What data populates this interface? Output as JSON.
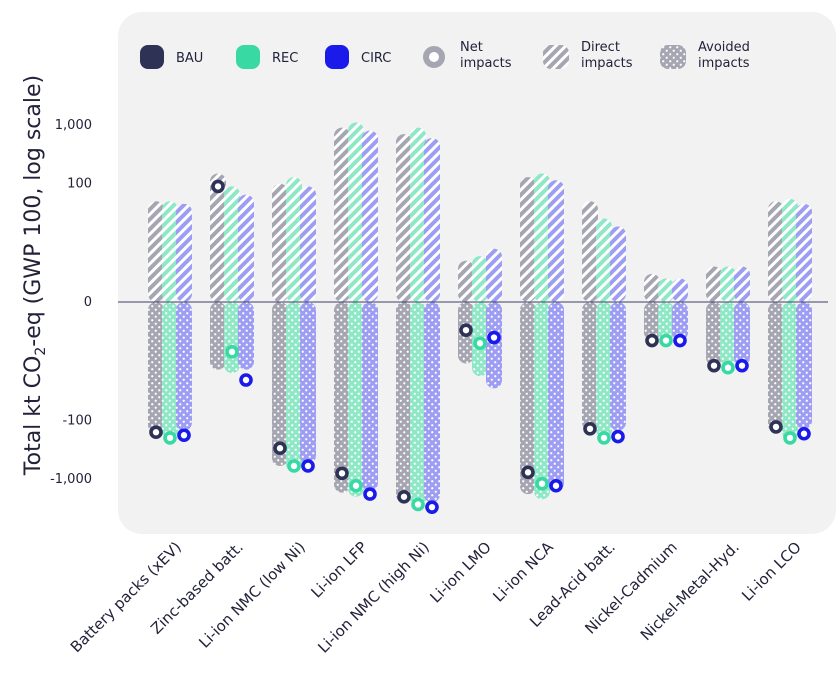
{
  "chart_data": {
    "type": "bar",
    "scale": "symlog",
    "ylabel": "Total kt CO₂-eq (GWP 100, log scale)",
    "ylabel_parts": {
      "pre": "Total kt CO",
      "sub": "2",
      "post": "-eq (GWP 100, log scale)"
    },
    "y_ticks": [
      1000,
      100,
      0,
      -100,
      -1000
    ],
    "y_tick_labels": [
      "1,000",
      "100",
      "0",
      "-100",
      "-1,000"
    ],
    "categories": [
      "Battery packs (xEV)",
      "Zinc-based batt.",
      "Li-ion NMC (low Ni)",
      "Li-ion LFP",
      "Li-ion NMC (high Ni)",
      "Li-ion LMO",
      "Li-ion NCA",
      "Lead-Acid batt.",
      "Nickel-Cadmium",
      "Nickel-Metal-Hyd.",
      "Li-ion LCO"
    ],
    "series": [
      {
        "name": "BAU",
        "color": "#2e3356",
        "direct": [
          50,
          150,
          100,
          900,
          700,
          4,
          130,
          50,
          2,
          3,
          50
        ],
        "avoided": [
          -170,
          -13,
          -600,
          -1700,
          -2500,
          -10,
          -1800,
          -150,
          -3.5,
          -11,
          -160
        ],
        "net": [
          -160,
          90,
          -300,
          -800,
          -2000,
          -2,
          -770,
          -140,
          -3.5,
          -11,
          -130
        ]
      },
      {
        "name": "REC",
        "color": "#38d9a2",
        "direct": [
          50,
          90,
          130,
          1100,
          900,
          5,
          150,
          25,
          1.5,
          3,
          55
        ],
        "avoided": [
          -220,
          -15,
          -750,
          -2000,
          -3000,
          -17,
          -2200,
          -200,
          -3.5,
          -11,
          -220
        ],
        "net": [
          -200,
          -6,
          -600,
          -1300,
          -2700,
          -4,
          -1200,
          -200,
          -3.5,
          -12,
          -200
        ]
      },
      {
        "name": "CIRC",
        "color": "#1a1aeb",
        "direct": [
          45,
          65,
          90,
          800,
          600,
          7,
          115,
          18,
          1.5,
          3,
          45
        ],
        "avoided": [
          -150,
          -13,
          -550,
          -1600,
          -2500,
          -28,
          -1600,
          -150,
          -3.5,
          -11,
          -140
        ],
        "net": [
          -180,
          -20,
          -600,
          -1800,
          -3000,
          -3,
          -1300,
          -190,
          -3.5,
          -11,
          -170
        ]
      }
    ],
    "legend": {
      "position": "top",
      "items": [
        {
          "key": "BAU",
          "label": [
            "BAU"
          ],
          "kind": "swatch",
          "color": "#2e3356"
        },
        {
          "key": "REC",
          "label": [
            "REC"
          ],
          "kind": "swatch",
          "color": "#38d9a2"
        },
        {
          "key": "CIRC",
          "label": [
            "CIRC"
          ],
          "kind": "swatch",
          "color": "#1a1aeb"
        },
        {
          "key": "net",
          "label": [
            "Net",
            "impacts"
          ],
          "kind": "ring"
        },
        {
          "key": "direct",
          "label": [
            "Direct",
            "impacts"
          ],
          "kind": "hatch"
        },
        {
          "key": "avoided",
          "label": [
            "Avoided",
            "impacts"
          ],
          "kind": "dots"
        }
      ]
    },
    "panel_background": "#f2f2f3",
    "zero_line_color": "#3c3f66"
  }
}
